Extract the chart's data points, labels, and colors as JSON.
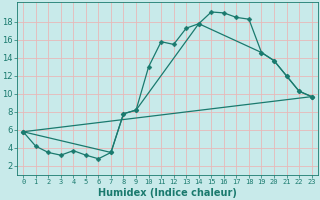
{
  "title": "",
  "xlabel": "Humidex (Indice chaleur)",
  "ylabel": "",
  "bg_color": "#c8eaea",
  "grid_color": "#e8b8b8",
  "line_color": "#1a7a6e",
  "xlim": [
    -0.5,
    23.5
  ],
  "ylim": [
    1.0,
    20.2
  ],
  "xticks": [
    0,
    1,
    2,
    3,
    4,
    5,
    6,
    7,
    8,
    9,
    10,
    11,
    12,
    13,
    14,
    15,
    16,
    17,
    18,
    19,
    20,
    21,
    22,
    23
  ],
  "yticks": [
    2,
    4,
    6,
    8,
    10,
    12,
    14,
    16,
    18
  ],
  "curve1_x": [
    0,
    1,
    2,
    3,
    4,
    5,
    6,
    7,
    8,
    9,
    10,
    11,
    12,
    13,
    14,
    15,
    16,
    17,
    18,
    19,
    20,
    21,
    22,
    23
  ],
  "curve1_y": [
    5.8,
    4.2,
    3.5,
    3.2,
    3.7,
    3.2,
    2.8,
    3.5,
    7.8,
    8.2,
    13.0,
    15.8,
    15.5,
    17.3,
    17.8,
    19.1,
    19.0,
    18.5,
    18.3,
    14.6,
    13.7,
    12.0,
    10.3,
    9.7
  ],
  "curve2_x": [
    0,
    7,
    8,
    9,
    14,
    19,
    20,
    21,
    22,
    23
  ],
  "curve2_y": [
    5.8,
    3.5,
    7.8,
    8.2,
    17.8,
    14.6,
    13.7,
    12.0,
    10.3,
    9.7
  ],
  "curve3_x": [
    0,
    23
  ],
  "curve3_y": [
    5.8,
    9.7
  ],
  "xlabel_fontsize": 7,
  "tick_fontsize_x": 5,
  "tick_fontsize_y": 6,
  "marker_size": 2.5,
  "line_width": 0.9
}
